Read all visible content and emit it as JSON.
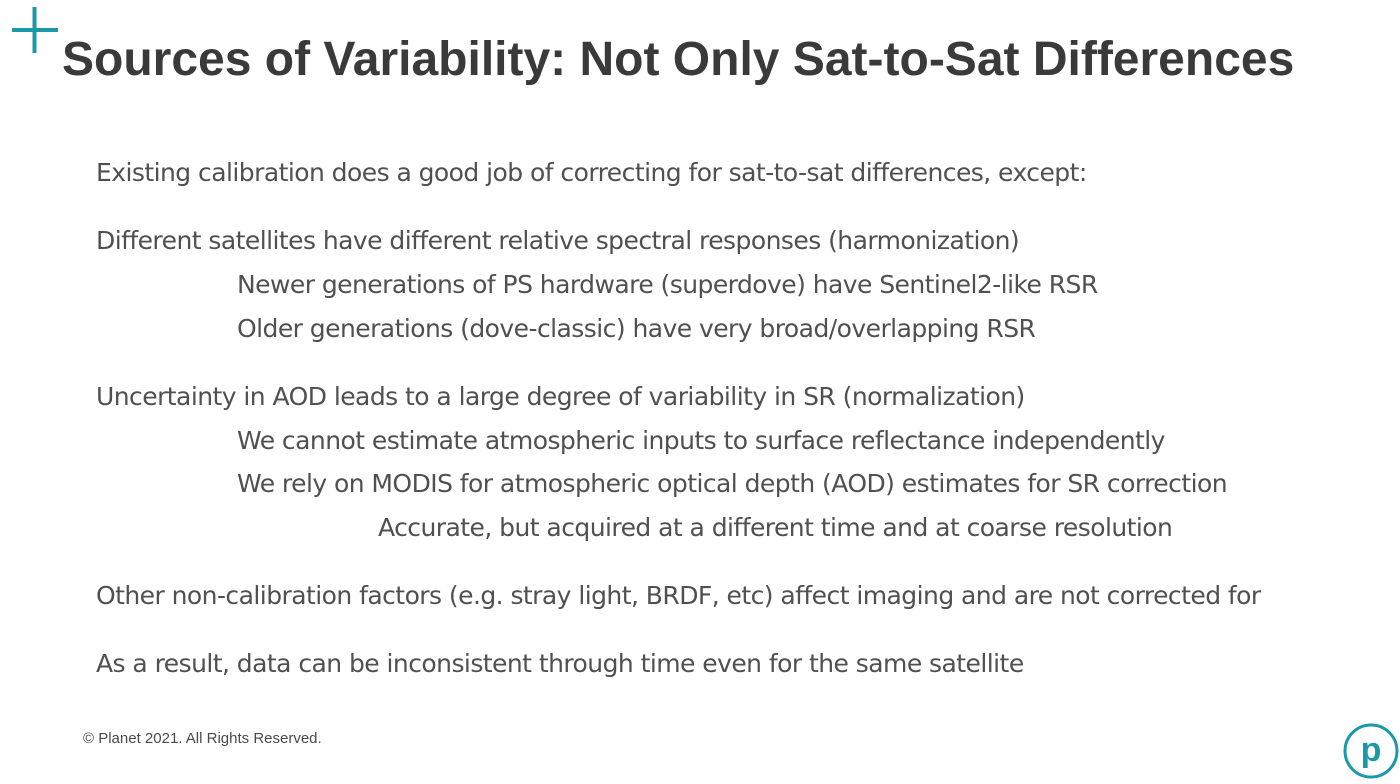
{
  "slide": {
    "title": "Sources of Variability: Not Only Sat-to-Sat Differences",
    "bullets": {
      "b0": "Existing calibration does a good job of correcting for sat-to-sat differences, except:",
      "b1": "Different satellites have different relative spectral responses (harmonization)",
      "b1a": "Newer generations of PS hardware (superdove) have Sentinel2-like RSR",
      "b1b": "Older generations (dove-classic) have very broad/overlapping RSR",
      "b2": "Uncertainty in AOD leads to a large degree of variability in SR (normalization)",
      "b2a": "We cannot estimate atmospheric inputs to surface reflectance independently",
      "b2b": "We rely on MODIS for atmospheric optical depth (AOD) estimates for SR correction",
      "b2b1": "Accurate, but acquired at a different time and at coarse resolution",
      "b3": "Other non-calibration factors (e.g. stray light, BRDF, etc) affect imaging and are not corrected for",
      "b4": "As a result, data can be inconsistent through time even for the same satellite"
    },
    "footer": "© Planet 2021. All Rights Reserved.",
    "logo_letter": "p",
    "accent_color": "#1a9aa6"
  }
}
